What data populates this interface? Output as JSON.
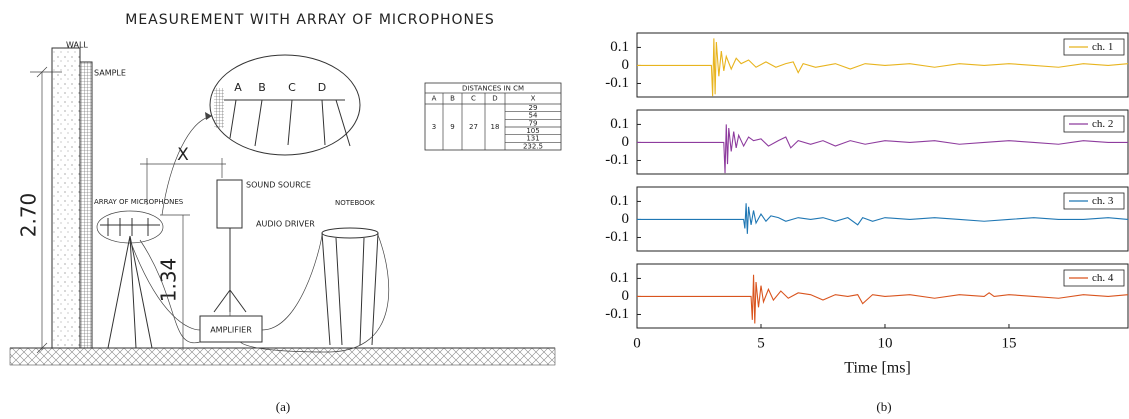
{
  "diagram": {
    "title": "MEASUREMENT WITH ARRAY OF MICROPHONES",
    "wall": "WALL",
    "sample": "SAMPLE",
    "height": "2.70",
    "distance": "X",
    "sound_source": "SOUND SOURCE",
    "array": "ARRAY OF MICROPHONES",
    "audio_driver": "AUDIO DRIVER",
    "notebook": "NOTEBOOK",
    "mic_height": "1.34",
    "amplifier": "AMPLIFIER",
    "inset_labels": [
      "A",
      "B",
      "C",
      "D"
    ],
    "table": {
      "title": "DISTANCES IN CM",
      "headers": [
        "A",
        "B",
        "C",
        "D",
        "X"
      ],
      "spacings": [
        "3",
        "9",
        "27",
        "18"
      ],
      "x_values": [
        "29",
        "54",
        "79",
        "105",
        "131",
        "232.5"
      ]
    }
  },
  "captions": {
    "a": "(a)",
    "b": "(b)"
  },
  "chart_data": [
    {
      "type": "line",
      "xlim": [
        0,
        19.8
      ],
      "ylim": [
        -0.175,
        0.18
      ],
      "yticks": [
        0.1,
        0,
        -0.1
      ],
      "grid": false,
      "legend": "upper right",
      "series": [
        {
          "name": "ch. 1",
          "color": "#e8b41e",
          "x": [
            0,
            3.0,
            3.05,
            3.1,
            3.15,
            3.2,
            3.3,
            3.4,
            3.5,
            3.6,
            3.8,
            4.0,
            4.2,
            4.5,
            4.8,
            5.2,
            5.6,
            6.0,
            6.3,
            6.5,
            6.7,
            7.2,
            8,
            8.6,
            9.2,
            10,
            11,
            12,
            13,
            14,
            15,
            16,
            17,
            18,
            19,
            19.8
          ],
          "values": [
            0,
            0,
            -0.17,
            0.15,
            -0.16,
            0.13,
            -0.06,
            0.08,
            -0.03,
            0.05,
            -0.02,
            0.04,
            0.01,
            0.03,
            -0.01,
            0.02,
            -0.01,
            0.01,
            0.02,
            -0.04,
            0.01,
            -0.01,
            0.01,
            -0.02,
            0.01,
            0,
            0.01,
            -0.01,
            0.01,
            0,
            0.01,
            0,
            -0.01,
            0.01,
            0,
            0.01
          ]
        }
      ]
    },
    {
      "type": "line",
      "xlim": [
        0,
        19.8
      ],
      "ylim": [
        -0.175,
        0.18
      ],
      "yticks": [
        0.1,
        0,
        -0.1
      ],
      "grid": false,
      "legend": "upper right",
      "series": [
        {
          "name": "ch. 2",
          "color": "#8e3c9e",
          "x": [
            0,
            3.5,
            3.55,
            3.6,
            3.65,
            3.7,
            3.8,
            3.9,
            4.0,
            4.1,
            4.3,
            4.5,
            4.7,
            5.0,
            5.3,
            5.7,
            6.0,
            6.2,
            6.5,
            7.0,
            7.5,
            8,
            8.6,
            9.2,
            10,
            11,
            12,
            13,
            14,
            15,
            16,
            17,
            18,
            19,
            19.8
          ],
          "values": [
            0,
            0,
            -0.17,
            0.1,
            -0.12,
            0.08,
            -0.05,
            0.06,
            -0.03,
            0.04,
            -0.02,
            0.03,
            0.01,
            0.02,
            -0.02,
            0.01,
            0.03,
            -0.03,
            0.01,
            -0.01,
            0.01,
            -0.02,
            0.01,
            -0.01,
            0.01,
            0,
            0.01,
            -0.01,
            0,
            0.01,
            0,
            -0.01,
            0.01,
            0,
            0
          ]
        }
      ]
    },
    {
      "type": "line",
      "xlim": [
        0,
        19.8
      ],
      "ylim": [
        -0.175,
        0.18
      ],
      "yticks": [
        0.1,
        0,
        -0.1
      ],
      "grid": false,
      "legend": "upper right",
      "series": [
        {
          "name": "ch. 3",
          "color": "#1f77b4",
          "x": [
            0,
            4.3,
            4.35,
            4.4,
            4.45,
            4.5,
            4.6,
            4.7,
            4.8,
            5.0,
            5.2,
            5.4,
            5.7,
            6.0,
            6.5,
            7.0,
            7.5,
            8,
            8.5,
            8.9,
            9.1,
            9.5,
            10,
            11,
            12,
            13,
            14,
            15,
            16,
            17,
            18,
            19,
            19.8
          ],
          "values": [
            0,
            0,
            -0.05,
            0.09,
            -0.08,
            0.07,
            -0.03,
            0.05,
            -0.02,
            0.03,
            -0.01,
            0.02,
            0.01,
            -0.01,
            0.01,
            0,
            0.01,
            -0.01,
            0.01,
            -0.03,
            0.01,
            -0.01,
            0.01,
            0,
            0.01,
            0,
            -0.01,
            0,
            0.01,
            0,
            0,
            0.01,
            0
          ]
        }
      ]
    },
    {
      "type": "line",
      "xlim": [
        0,
        19.8
      ],
      "ylim": [
        -0.175,
        0.18
      ],
      "yticks": [
        0.1,
        0,
        -0.1
      ],
      "xticks": [
        0,
        5,
        10,
        15
      ],
      "xlabel": "Time [ms]",
      "grid": false,
      "legend": "upper right",
      "series": [
        {
          "name": "ch. 4",
          "color": "#d9541e",
          "x": [
            0,
            4.6,
            4.65,
            4.7,
            4.75,
            4.8,
            4.9,
            5.0,
            5.1,
            5.3,
            5.5,
            5.8,
            6.1,
            6.5,
            7.0,
            7.5,
            8,
            8.5,
            8.9,
            9.1,
            9.5,
            10,
            11,
            12,
            13,
            14,
            14.2,
            14.4,
            15,
            16,
            17,
            18,
            19,
            19.8
          ],
          "values": [
            0,
            0,
            -0.13,
            0.12,
            -0.15,
            0.08,
            -0.06,
            0.06,
            -0.03,
            0.04,
            -0.02,
            0.03,
            -0.01,
            0.02,
            0.01,
            -0.02,
            0.01,
            0,
            0.01,
            -0.04,
            0.01,
            0,
            0.01,
            -0.01,
            0.01,
            0,
            0.02,
            0,
            0.01,
            0,
            -0.01,
            0.01,
            0,
            0.01
          ]
        }
      ]
    }
  ]
}
